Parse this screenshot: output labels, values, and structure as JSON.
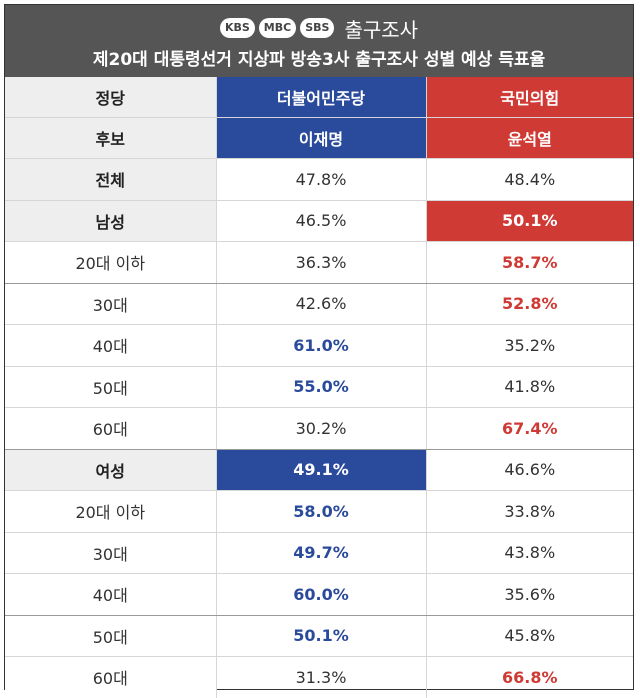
{
  "header": {
    "logos": [
      "KBS",
      "MBC",
      "SBS"
    ],
    "logo_title": "출구조사",
    "subtitle": "제20대 대통령선거 지상파 방송3사 출구조사 성별 예상 득표율"
  },
  "table": {
    "party_label": "정당",
    "candidate_label": "후보",
    "parties": [
      "더불어민주당",
      "국민의힘"
    ],
    "candidates": [
      "이재명",
      "윤석열"
    ],
    "rows": [
      {
        "label": "전체",
        "v1": "47.8%",
        "v2": "48.4%"
      },
      {
        "label": "남성",
        "v1": "46.5%",
        "v2": "50.1%"
      },
      {
        "label": "20대 이하",
        "v1": "36.3%",
        "v2": "58.7%"
      },
      {
        "label": "30대",
        "v1": "42.6%",
        "v2": "52.8%"
      },
      {
        "label": "40대",
        "v1": "61.0%",
        "v2": "35.2%"
      },
      {
        "label": "50대",
        "v1": "55.0%",
        "v2": "41.8%"
      },
      {
        "label": "60대",
        "v1": "30.2%",
        "v2": "67.4%"
      },
      {
        "label": "여성",
        "v1": "49.1%",
        "v2": "46.6%"
      },
      {
        "label": "20대 이하",
        "v1": "58.0%",
        "v2": "33.8%"
      },
      {
        "label": "30대",
        "v1": "49.7%",
        "v2": "43.8%"
      },
      {
        "label": "40대",
        "v1": "60.0%",
        "v2": "35.6%"
      },
      {
        "label": "50대",
        "v1": "50.1%",
        "v2": "45.8%"
      },
      {
        "label": "60대",
        "v1": "31.3%",
        "v2": "66.8%"
      }
    ]
  },
  "colors": {
    "democratic_blue": "#2a4a9c",
    "ppp_red": "#d03a35",
    "header_gray": "#555555"
  }
}
